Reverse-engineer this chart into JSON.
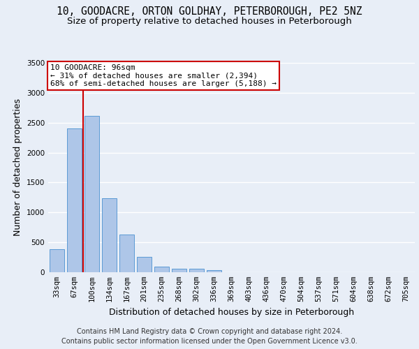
{
  "title_line1": "10, GOODACRE, ORTON GOLDHAY, PETERBOROUGH, PE2 5NZ",
  "title_line2": "Size of property relative to detached houses in Peterborough",
  "xlabel": "Distribution of detached houses by size in Peterborough",
  "ylabel": "Number of detached properties",
  "categories": [
    "33sqm",
    "67sqm",
    "100sqm",
    "134sqm",
    "167sqm",
    "201sqm",
    "235sqm",
    "268sqm",
    "302sqm",
    "336sqm",
    "369sqm",
    "403sqm",
    "436sqm",
    "470sqm",
    "504sqm",
    "537sqm",
    "571sqm",
    "604sqm",
    "638sqm",
    "672sqm",
    "705sqm"
  ],
  "values": [
    390,
    2400,
    2610,
    1240,
    635,
    255,
    95,
    60,
    55,
    40,
    0,
    0,
    0,
    0,
    0,
    0,
    0,
    0,
    0,
    0,
    0
  ],
  "bar_color": "#aec6e8",
  "bar_edge_color": "#5b9bd5",
  "background_color": "#e8eef7",
  "grid_color": "#ffffff",
  "annotation_line1": "10 GOODACRE: 96sqm",
  "annotation_line2": "← 31% of detached houses are smaller (2,394)",
  "annotation_line3": "68% of semi-detached houses are larger (5,188) →",
  "annotation_box_facecolor": "#ffffff",
  "annotation_box_edgecolor": "#cc0000",
  "vline_color": "#cc0000",
  "vline_x_index": 1.5,
  "ylim_max": 3500,
  "yticks": [
    0,
    500,
    1000,
    1500,
    2000,
    2500,
    3000,
    3500
  ],
  "footer_line1": "Contains HM Land Registry data © Crown copyright and database right 2024.",
  "footer_line2": "Contains public sector information licensed under the Open Government Licence v3.0.",
  "title_fontsize": 10.5,
  "subtitle_fontsize": 9.5,
  "ylabel_fontsize": 9,
  "xlabel_fontsize": 9,
  "tick_fontsize": 7.5,
  "ann_fontsize": 8,
  "footer_fontsize": 7
}
